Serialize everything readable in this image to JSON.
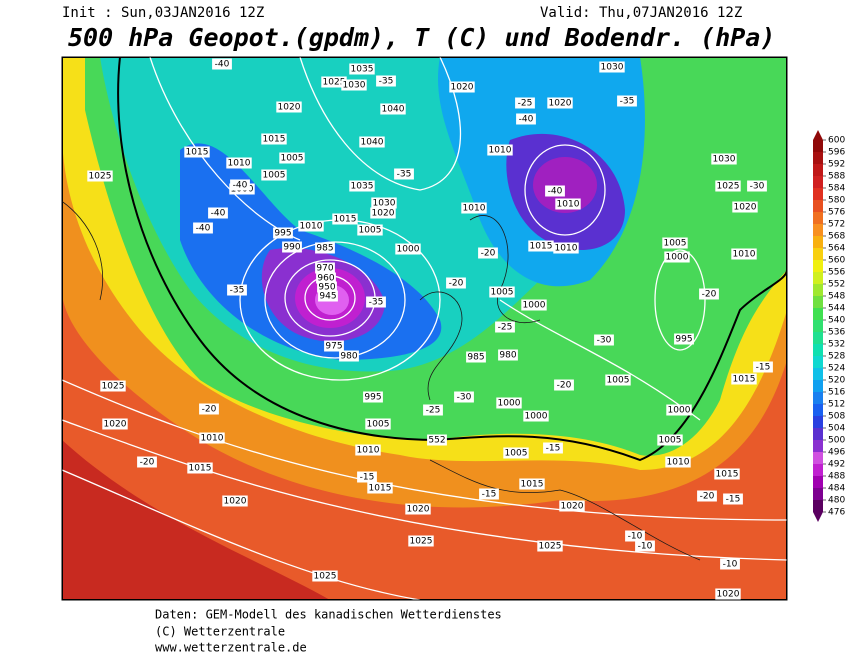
{
  "header": {
    "init": "Init : Sun,03JAN2016 12Z",
    "valid": "Valid: Thu,07JAN2016 12Z",
    "title": "500 hPa Geopot.(gpdm), T (C) und Bodendr. (hPa)"
  },
  "colorbar": {
    "levels": [
      476,
      480,
      484,
      488,
      492,
      496,
      500,
      504,
      508,
      512,
      516,
      520,
      524,
      528,
      532,
      536,
      540,
      544,
      548,
      552,
      556,
      560,
      564,
      568,
      572,
      576,
      580,
      584,
      588,
      592,
      596,
      600
    ],
    "colors": [
      "#5a0060",
      "#7d0090",
      "#a000b0",
      "#c020d0",
      "#d050e0",
      "#8a30d0",
      "#5a30d0",
      "#2a40e0",
      "#1a60f0",
      "#1a80f0",
      "#10a0f0",
      "#10c0e8",
      "#10d8d0",
      "#10e0b0",
      "#20e090",
      "#30e070",
      "#40e050",
      "#70e040",
      "#a0e830",
      "#d0f020",
      "#f0f010",
      "#f8d010",
      "#f8b010",
      "#f89020",
      "#f07020",
      "#e85020",
      "#e03020",
      "#d02020",
      "#c01818",
      "#a81010",
      "#900808"
    ]
  },
  "map": {
    "pressure_labels": [
      1035,
      1025,
      1030,
      1020,
      1040,
      1015,
      1005,
      1040,
      1010,
      1005,
      1000,
      1035,
      1030,
      1020,
      1015,
      1010,
      995,
      990,
      985,
      1005,
      1000,
      975,
      980,
      985,
      980,
      995,
      1005,
      1010,
      1015,
      1020,
      1025,
      1025,
      1010,
      1015,
      1020,
      1025,
      1020,
      1025,
      1015,
      1010,
      1010,
      1010,
      1015,
      1010,
      1005,
      1000,
      1000,
      1000,
      1005,
      1015,
      1020,
      1025,
      1020,
      1020,
      1030,
      1030,
      1025,
      1020,
      1010,
      1005,
      1000,
      995,
      1005,
      1000,
      1005,
      1010,
      1015,
      1015,
      1020,
      970,
      960,
      950,
      945
    ],
    "temperature_labels": [
      -40,
      -35,
      -40,
      -40,
      -40,
      -35,
      -35,
      -35,
      -40,
      -25,
      -35,
      -40,
      -30,
      -20,
      -20,
      -25,
      -30,
      -20,
      -20,
      -30,
      -25,
      -20,
      -20,
      -15,
      -15,
      -15,
      -20,
      -15,
      -15,
      -10,
      -10,
      -10
    ],
    "geopotential_labels": [
      552
    ]
  },
  "footer": {
    "source": "Daten: GEM-Modell des kanadischen Wetterdienstes",
    "copyright": "(C) Wetterzentrale",
    "url": "www.wetterzentrale.de"
  }
}
